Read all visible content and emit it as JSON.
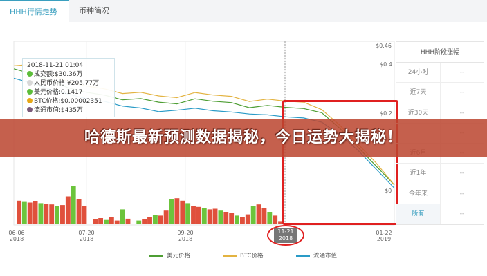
{
  "tabs": [
    {
      "label": "HHH行情走势",
      "active": true
    },
    {
      "label": "币种简况",
      "active": false
    }
  ],
  "tooltip": {
    "time": "2018-11-21 01:04",
    "items": [
      {
        "label": "成交额:$30.36万",
        "color": "#5cbd3a"
      },
      {
        "label": "人民币价格:¥205.77万",
        "color": "#d8d8d8"
      },
      {
        "label": "美元价格:0.1417",
        "color": "#5cbd3a"
      },
      {
        "label": "BTC价格:$0.00002351",
        "color": "#e6a817"
      },
      {
        "label": "流通市值:$435万",
        "color": "#7a5a7a"
      }
    ]
  },
  "banner": {
    "text": "哈德斯最新预测数据揭秘，今日运势大揭秘！"
  },
  "stage_table": {
    "title": "HHH阶段涨幅",
    "rows": [
      {
        "label": "24小时",
        "value": "--"
      },
      {
        "label": "近7天",
        "value": "--"
      },
      {
        "label": "近30天",
        "value": "--"
      },
      {
        "label": "",
        "value": "--"
      },
      {
        "label": "近6月",
        "value": "--"
      },
      {
        "label": "近1年",
        "value": "--"
      },
      {
        "label": "今年来",
        "value": "--"
      },
      {
        "label": "所有",
        "value": "--",
        "selected": true
      }
    ]
  },
  "chart_data": {
    "type": "line",
    "y_ticks": [
      "$0.46",
      "$0.4",
      "$0.2",
      "$0"
    ],
    "ylim": [
      0,
      0.46
    ],
    "x_ticks": [
      {
        "d": "06-06",
        "y": "2018"
      },
      {
        "d": "07-20",
        "y": "2018"
      },
      {
        "d": "09-20",
        "y": "2018"
      },
      {
        "d": "11-21",
        "y": "2018",
        "selected": true
      },
      {
        "d": "01-22",
        "y": "2019"
      }
    ],
    "series": [
      {
        "name": "美元价格",
        "color": "#4e9e34",
        "values": [
          0.39,
          0.38,
          0.36,
          0.33,
          0.31,
          0.3,
          0.29,
          0.3,
          0.29,
          0.28,
          0.29,
          0.28,
          0.28,
          0.27,
          0.28,
          0.27,
          0.26,
          0.25,
          0.2,
          0.14,
          0.08,
          0.02
        ]
      },
      {
        "name": "BTC价格",
        "color": "#e3b341",
        "values": [
          0.4,
          0.41,
          0.38,
          0.35,
          0.33,
          0.32,
          0.31,
          0.32,
          0.31,
          0.3,
          0.31,
          0.3,
          0.3,
          0.29,
          0.3,
          0.29,
          0.28,
          0.26,
          0.21,
          0.15,
          0.09,
          0.02
        ]
      },
      {
        "name": "流通市值",
        "color": "#2a9bc7",
        "values": [
          0.36,
          0.35,
          0.33,
          0.31,
          0.29,
          0.28,
          0.27,
          0.27,
          0.26,
          0.26,
          0.26,
          0.25,
          0.25,
          0.25,
          0.25,
          0.24,
          0.23,
          0.22,
          0.18,
          0.13,
          0.07,
          0.01
        ]
      }
    ],
    "volume": [
      38,
      36,
      35,
      37,
      34,
      33,
      32,
      30,
      31,
      45,
      62,
      40,
      30,
      0,
      8,
      10,
      7,
      12,
      6,
      24,
      9,
      0,
      6,
      8,
      12,
      15,
      14,
      22,
      40,
      42,
      38,
      34,
      30,
      28,
      26,
      24,
      25,
      22,
      20,
      18,
      14,
      12,
      16,
      30,
      32,
      26,
      20,
      14,
      4
    ]
  }
}
